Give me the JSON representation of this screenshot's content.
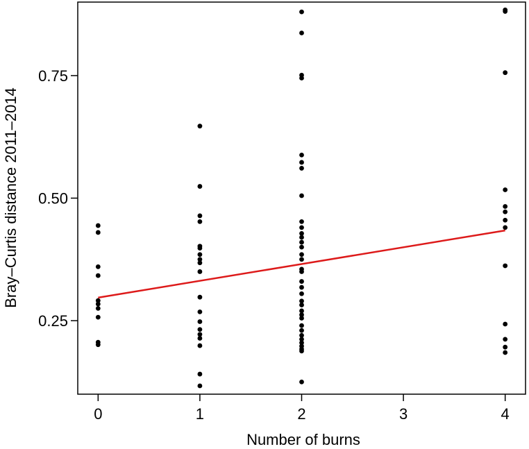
{
  "chart_data": {
    "type": "scatter",
    "title": "",
    "xlabel": "Number of burns",
    "ylabel": "Bray–Curtis distance 2011–2014",
    "xlim": [
      -0.2,
      4.2
    ],
    "ylim": [
      0.1,
      0.9
    ],
    "xticks": [
      0,
      1,
      2,
      3,
      4
    ],
    "xtick_labels": [
      "0",
      "1",
      "2",
      "3",
      "4"
    ],
    "yticks": [
      0.25,
      0.5,
      0.75
    ],
    "ytick_labels": [
      "0.25",
      "0.50",
      "0.75"
    ],
    "grid": false,
    "point_color": "#000000",
    "line_color": "#dd1a1a",
    "series": [
      {
        "type": "scatter",
        "points": [
          [
            0,
            0.444
          ],
          [
            0,
            0.43
          ],
          [
            0,
            0.36
          ],
          [
            0,
            0.342
          ],
          [
            0,
            0.291
          ],
          [
            0,
            0.284
          ],
          [
            0,
            0.275
          ],
          [
            0,
            0.257
          ],
          [
            0,
            0.206
          ],
          [
            0,
            0.201
          ],
          [
            1,
            0.647
          ],
          [
            1,
            0.524
          ],
          [
            1,
            0.464
          ],
          [
            1,
            0.452
          ],
          [
            1,
            0.402
          ],
          [
            1,
            0.398
          ],
          [
            1,
            0.385
          ],
          [
            1,
            0.375
          ],
          [
            1,
            0.368
          ],
          [
            1,
            0.35
          ],
          [
            1,
            0.298
          ],
          [
            1,
            0.268
          ],
          [
            1,
            0.248
          ],
          [
            1,
            0.232
          ],
          [
            1,
            0.222
          ],
          [
            1,
            0.214
          ],
          [
            1,
            0.199
          ],
          [
            1,
            0.141
          ],
          [
            1,
            0.117
          ],
          [
            2,
            0.88
          ],
          [
            2,
            0.837
          ],
          [
            2,
            0.751
          ],
          [
            2,
            0.745
          ],
          [
            2,
            0.588
          ],
          [
            2,
            0.573
          ],
          [
            2,
            0.561
          ],
          [
            2,
            0.505
          ],
          [
            2,
            0.452
          ],
          [
            2,
            0.44
          ],
          [
            2,
            0.428
          ],
          [
            2,
            0.42
          ],
          [
            2,
            0.41
          ],
          [
            2,
            0.4
          ],
          [
            2,
            0.385
          ],
          [
            2,
            0.375
          ],
          [
            2,
            0.355
          ],
          [
            2,
            0.35
          ],
          [
            2,
            0.33
          ],
          [
            2,
            0.318
          ],
          [
            2,
            0.305
          ],
          [
            2,
            0.29
          ],
          [
            2,
            0.282
          ],
          [
            2,
            0.27
          ],
          [
            2,
            0.262
          ],
          [
            2,
            0.255
          ],
          [
            2,
            0.24
          ],
          [
            2,
            0.23
          ],
          [
            2,
            0.22
          ],
          [
            2,
            0.212
          ],
          [
            2,
            0.205
          ],
          [
            2,
            0.198
          ],
          [
            2,
            0.192
          ],
          [
            2,
            0.188
          ],
          [
            2,
            0.125
          ],
          [
            4,
            0.884
          ],
          [
            4,
            0.881
          ],
          [
            4,
            0.756
          ],
          [
            4,
            0.517
          ],
          [
            4,
            0.483
          ],
          [
            4,
            0.472
          ],
          [
            4,
            0.455
          ],
          [
            4,
            0.44
          ],
          [
            4,
            0.362
          ],
          [
            4,
            0.243
          ],
          [
            4,
            0.212
          ],
          [
            4,
            0.196
          ],
          [
            4,
            0.185
          ]
        ]
      },
      {
        "type": "line",
        "points": [
          [
            0,
            0.297
          ],
          [
            4,
            0.434
          ]
        ]
      }
    ]
  }
}
